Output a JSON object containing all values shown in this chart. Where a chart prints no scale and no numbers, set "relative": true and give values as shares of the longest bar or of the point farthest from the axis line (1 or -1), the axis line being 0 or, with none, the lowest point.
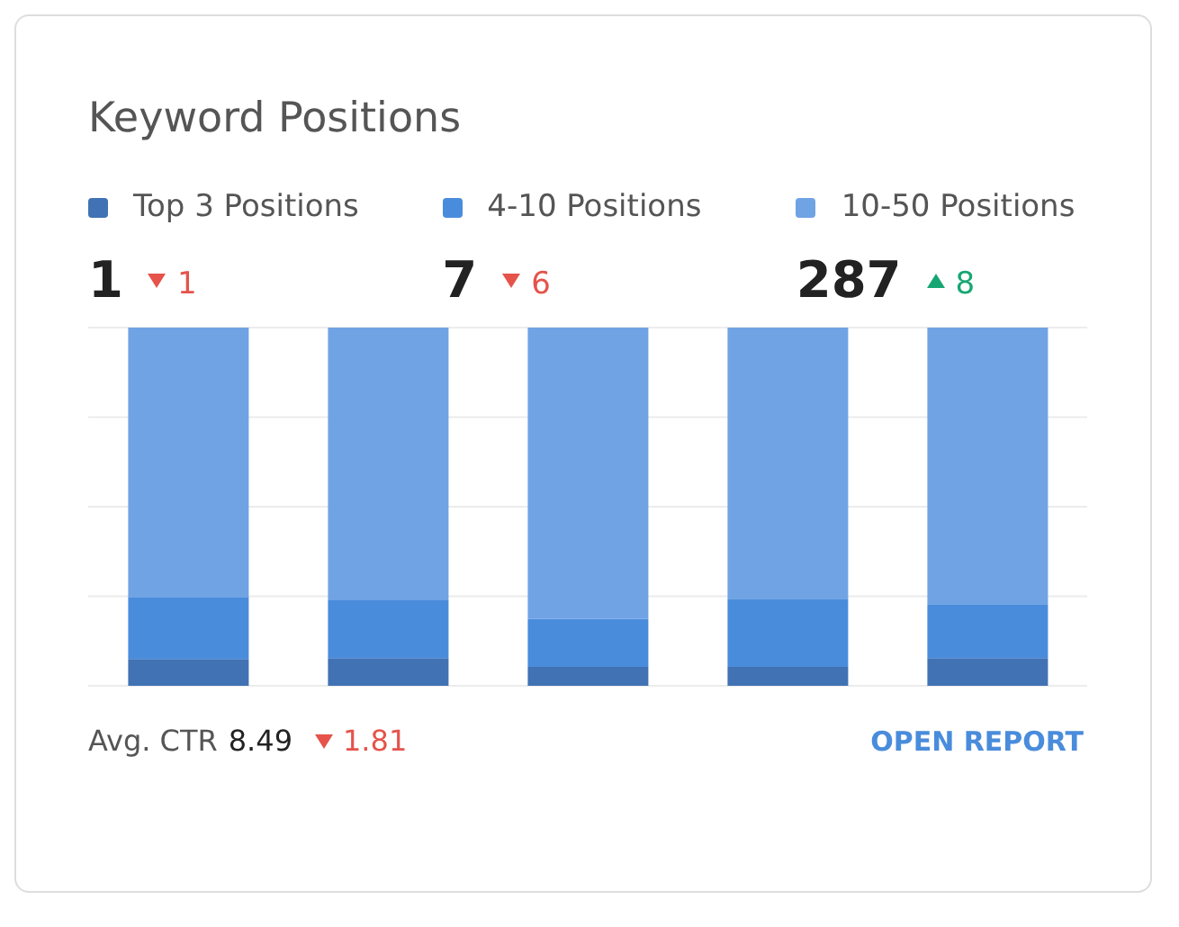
{
  "chart_data": {
    "type": "bar",
    "title": "Keyword Positions",
    "categories": [
      null,
      null,
      null,
      null,
      null
    ],
    "stacked": true,
    "relative": true,
    "grid": "y",
    "legend": "top",
    "series": [
      {
        "name": "Top 3 Positions",
        "color": "#4172b4",
        "values": [
          0.075,
          0.077,
          0.053,
          0.053,
          0.077
        ]
      },
      {
        "name": "4-10 Positions",
        "color": "#4a8cdc",
        "values": [
          0.173,
          0.162,
          0.134,
          0.19,
          0.151
        ]
      },
      {
        "name": "10-50 Positions",
        "color": "#70a3e4",
        "values": [
          0.752,
          0.761,
          0.813,
          0.757,
          0.772
        ]
      }
    ],
    "annotations": [
      "1",
      "1",
      "7",
      "6",
      "287",
      "8",
      "Avg. CTR",
      "8.49",
      "1.81",
      "OPEN REPORT"
    ]
  }
}
